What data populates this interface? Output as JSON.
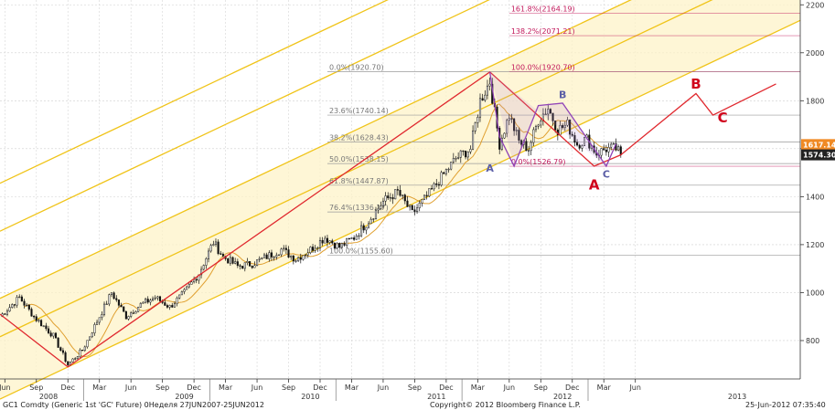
{
  "chart_data": {
    "type": "candlestick",
    "title": "",
    "footer": {
      "left": "GC1 Comdty (Generic 1st 'GC' Future) 0Неделя 27JUN2007-25JUN2012",
      "center": "Copyright© 2012 Bloomberg Finance L.P.",
      "right": "25-Jun-2012 07:35:40"
    },
    "y_axis": {
      "ylim": [
        640,
        2220
      ],
      "ticks": [
        "800",
        "1000",
        "1200",
        "1400",
        "1600",
        "1800",
        "2000",
        "2200"
      ],
      "price_tags": [
        {
          "label": "1617.14",
          "value": 1617.14,
          "color": "#f08a24"
        },
        {
          "label": "1574.30",
          "value": 1574.3,
          "color": "#222222"
        }
      ]
    },
    "x_axis": {
      "month_ticks": [
        "Jun",
        "Sep",
        "Dec",
        "Mar",
        "Jun",
        "Sep",
        "Dec",
        "Mar",
        "Jun",
        "Sep",
        "Dec",
        "Mar",
        "Jun",
        "Sep",
        "Dec",
        "Mar",
        "Jun",
        "Sep",
        "Dec",
        "Mar",
        "Jun"
      ],
      "year_labels": [
        "2008",
        "2009",
        "2010",
        "2011",
        "2012",
        "2013"
      ]
    },
    "fib_levels": [
      {
        "label": "0.0%(1920.70)",
        "value": 1920.7,
        "color": "#777777"
      },
      {
        "label": "23.6%(1740.14)",
        "value": 1740.14,
        "color": "#777777"
      },
      {
        "label": "38.2%(1628.43)",
        "value": 1628.43,
        "color": "#777777"
      },
      {
        "label": "50.0%(1538.15)",
        "value": 1538.15,
        "color": "#777777"
      },
      {
        "label": "61.8%(1447.87)",
        "value": 1447.87,
        "color": "#777777"
      },
      {
        "label": "76.4%(1336.17)",
        "value": 1336.17,
        "color": "#777777"
      },
      {
        "label": "100.0%(1155.60)",
        "value": 1155.6,
        "color": "#777777"
      }
    ],
    "ext_levels": [
      {
        "label": "161.8%(2164.19)",
        "value": 2164.19,
        "color": "#c2185b"
      },
      {
        "label": "138.2%(2071.21)",
        "value": 2071.21,
        "color": "#c2185b"
      },
      {
        "label": "100.0%(1920.70)",
        "value": 1920.7,
        "color": "#c2185b"
      },
      {
        "label": "0.0%(1526.79)",
        "value": 1526.79,
        "color": "#c2185b"
      }
    ],
    "pattern_labels": [
      {
        "text": "A",
        "color": "#5b5ea6",
        "t": 202,
        "v": 1505
      },
      {
        "text": "B",
        "color": "#5b5ea6",
        "t": 232,
        "v": 1810
      },
      {
        "text": "C",
        "color": "#5b5ea6",
        "t": 250,
        "v": 1480
      },
      {
        "text": "A",
        "color": "#d0021b",
        "t": 245,
        "v": 1430
      },
      {
        "text": "B",
        "color": "#d0021b",
        "t": 287,
        "v": 1850
      },
      {
        "text": "C",
        "color": "#d0021b",
        "t": 298,
        "v": 1710
      }
    ],
    "colors": {
      "channel": "#f0c419",
      "channel_fill": "#fdf3c8",
      "red_line": "#e0282e",
      "purple_line": "#8e3fb5",
      "ma_line": "#e0a030",
      "candle_up": "#ffffff",
      "candle_down": "#111111"
    },
    "series": [
      {
        "name": "",
        "type": "ohlc-weekly-close",
        "anchors": [
          [
            0,
            900
          ],
          [
            8,
            980
          ],
          [
            14,
            900
          ],
          [
            22,
            820
          ],
          [
            28,
            700
          ],
          [
            34,
            760
          ],
          [
            40,
            880
          ],
          [
            46,
            1000
          ],
          [
            52,
            900
          ],
          [
            58,
            950
          ],
          [
            64,
            980
          ],
          [
            70,
            940
          ],
          [
            76,
            1000
          ],
          [
            82,
            1080
          ],
          [
            88,
            1210
          ],
          [
            92,
            1150
          ],
          [
            98,
            1110
          ],
          [
            104,
            1120
          ],
          [
            110,
            1150
          ],
          [
            116,
            1180
          ],
          [
            122,
            1140
          ],
          [
            128,
            1180
          ],
          [
            134,
            1230
          ],
          [
            140,
            1190
          ],
          [
            146,
            1230
          ],
          [
            152,
            1300
          ],
          [
            158,
            1380
          ],
          [
            164,
            1420
          ],
          [
            170,
            1330
          ],
          [
            176,
            1400
          ],
          [
            182,
            1480
          ],
          [
            188,
            1560
          ],
          [
            194,
            1600
          ],
          [
            198,
            1800
          ],
          [
            202,
            1880
          ],
          [
            206,
            1620
          ],
          [
            210,
            1740
          ],
          [
            214,
            1630
          ],
          [
            218,
            1600
          ],
          [
            222,
            1720
          ],
          [
            226,
            1770
          ],
          [
            230,
            1680
          ],
          [
            234,
            1700
          ],
          [
            238,
            1620
          ],
          [
            242,
            1640
          ],
          [
            246,
            1580
          ],
          [
            250,
            1600
          ],
          [
            254,
            1600
          ],
          [
            256,
            1574.3
          ]
        ]
      }
    ],
    "projection": {
      "points": [
        [
          256,
          1574.3
        ],
        [
          287,
          1830
        ],
        [
          294,
          1740
        ],
        [
          320,
          1870
        ]
      ]
    }
  }
}
